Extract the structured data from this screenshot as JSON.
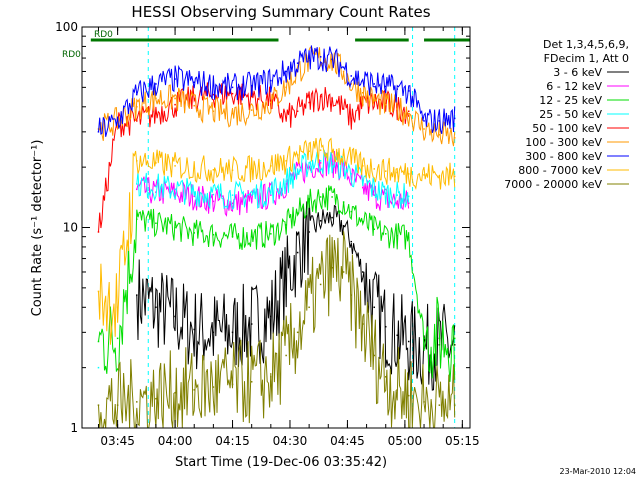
{
  "chart_data": {
    "type": "line",
    "title": "HESSI Observing Summary Count Rates",
    "xlabel": "Start Time (19-Dec-06 03:35:42)",
    "ylabel": "Count Rate (s⁻¹ detector⁻¹)",
    "y_scale": "log",
    "ylim": [
      1,
      100
    ],
    "y_ticks": [
      "1",
      "10",
      "100"
    ],
    "xlim": [
      "03:35:42",
      "05:17:00"
    ],
    "x_ticks": [
      "03:45",
      "04:00",
      "04:15",
      "04:30",
      "04:45",
      "05:00",
      "05:15"
    ],
    "grid": false,
    "legend_position": "right",
    "legend_header": [
      "Det 1,3,4,5,6,9,",
      "FDecim 1, Att 0"
    ],
    "timestamp": "23-Mar-2010 12:04",
    "markers": {
      "rdo_label": "RD0",
      "cyan_dashed_times": [
        "03:53",
        "05:02",
        "05:13"
      ],
      "gaps": [
        {
          "start": "03:35:42",
          "end": "03:38"
        },
        {
          "start": "04:27",
          "end": "04:47"
        },
        {
          "start": "05:01",
          "end": "05:05"
        }
      ]
    },
    "times": [
      "03:40",
      "03:45",
      "03:50",
      "03:55",
      "04:00",
      "04:05",
      "04:10",
      "04:15",
      "04:20",
      "04:25",
      "04:29",
      "04:32",
      "04:35",
      "04:38",
      "04:41",
      "04:44",
      "04:46",
      "04:49",
      "04:52",
      "04:55",
      "04:58",
      "05:01",
      "05:05",
      "05:09",
      "05:13"
    ],
    "series": [
      {
        "name": "3 - 6 keV",
        "color": "#000000",
        "values": [
          null,
          null,
          4.6,
          4.0,
          3.6,
          3.1,
          3.0,
          3.0,
          3.3,
          3.6,
          5.5,
          7.5,
          9.5,
          10.8,
          11.2,
          10.2,
          8.5,
          6.0,
          4.0,
          3.2,
          2.9,
          2.7,
          2.5,
          2.6,
          2.6
        ]
      },
      {
        "name": "6 - 12 keV",
        "color": "#ff00ff",
        "values": [
          null,
          null,
          15.5,
          15.0,
          14.8,
          14.3,
          13.5,
          13.2,
          13.5,
          14.5,
          16.5,
          18.5,
          20.0,
          21.0,
          20.8,
          19.5,
          17.5,
          15.8,
          14.5,
          13.8,
          13.5,
          13.2,
          null,
          null,
          null
        ]
      },
      {
        "name": "12 - 25 keV",
        "color": "#00dd00",
        "values": [
          2.7,
          2.8,
          11.0,
          10.5,
          10.0,
          9.4,
          9.2,
          9.0,
          9.0,
          9.3,
          10.3,
          11.8,
          13.2,
          14.2,
          14.2,
          13.4,
          12.0,
          10.7,
          9.8,
          9.3,
          9.1,
          8.9,
          2.8,
          2.8,
          2.8
        ]
      },
      {
        "name": "25 - 50 keV",
        "color": "#00ffff",
        "values": [
          2.0,
          null,
          16.5,
          16.0,
          15.5,
          15.0,
          14.6,
          14.5,
          14.5,
          15.0,
          17.0,
          19.0,
          21.0,
          21.5,
          21.0,
          20.0,
          18.5,
          17.0,
          15.5,
          14.8,
          14.5,
          14.3,
          null,
          null,
          null
        ]
      },
      {
        "name": "50 - 100 keV",
        "color": "#ff0000",
        "values": [
          9.5,
          33.0,
          34.0,
          37.0,
          41.0,
          44.0,
          46.0,
          46.5,
          45.0,
          43.0,
          35.0,
          38.0,
          42.0,
          45.0,
          44.0,
          39.0,
          35.0,
          41.0,
          42.0,
          41.5,
          40.0,
          38.0,
          null,
          null,
          null
        ]
      },
      {
        "name": "100 - 300 keV",
        "color": "#ff9900",
        "values": [
          31.0,
          34.0,
          40.0,
          44.0,
          44.0,
          40.5,
          38.0,
          37.0,
          38.5,
          42.0,
          50.0,
          60.0,
          68.0,
          71.0,
          68.0,
          60.0,
          52.0,
          47.0,
          43.0,
          41.0,
          39.0,
          37.0,
          31.0,
          29.0,
          28.0
        ]
      },
      {
        "name": "300 - 800 keV",
        "color": "#0000ff",
        "values": [
          30.0,
          34.0,
          46.0,
          52.0,
          55.0,
          53.0,
          51.0,
          50.0,
          51.0,
          54.0,
          60.0,
          66.0,
          70.0,
          71.0,
          69.0,
          63.0,
          57.0,
          54.0,
          52.0,
          50.5,
          49.0,
          48.0,
          34.0,
          34.0,
          35.0
        ]
      },
      {
        "name": "800 - 7000 keV",
        "color": "#ffbb00",
        "values": [
          4.8,
          4.0,
          21.5,
          21.0,
          20.3,
          19.8,
          19.4,
          19.3,
          19.6,
          20.3,
          21.5,
          23.0,
          24.0,
          24.3,
          24.0,
          23.0,
          21.5,
          20.3,
          19.6,
          19.1,
          18.8,
          18.5,
          18.3,
          18.1,
          18.0
        ]
      },
      {
        "name": "7000 - 20000 keV",
        "color": "#808000",
        "values": [
          1.3,
          1.3,
          1.35,
          1.4,
          1.5,
          1.55,
          1.6,
          1.65,
          1.7,
          1.8,
          2.3,
          3.0,
          4.0,
          5.2,
          6.3,
          6.0,
          4.6,
          3.3,
          2.3,
          1.8,
          1.55,
          1.45,
          1.35,
          1.3,
          1.3
        ]
      }
    ]
  }
}
